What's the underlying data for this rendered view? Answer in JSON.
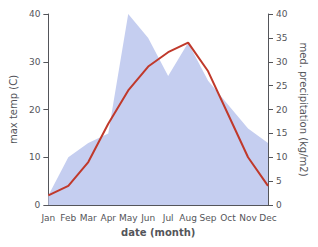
{
  "chart_data": {
    "type": "line",
    "xlabel": "date (month)",
    "ylabel": "max temp (C)",
    "y2label": "med. precipitation (kg/m2)",
    "categories": [
      "Jan",
      "Feb",
      "Mar",
      "Apr",
      "May",
      "Jun",
      "Jul",
      "Aug",
      "Sep",
      "Oct",
      "Nov",
      "Dec"
    ],
    "series": [
      {
        "type": "area",
        "color": "#c5cef0",
        "axis": "y2",
        "values": [
          2,
          10,
          13,
          15,
          40,
          35,
          27,
          34,
          26,
          21,
          16,
          13
        ]
      },
      {
        "type": "line",
        "color": "#c0392b",
        "values": [
          2,
          4,
          9,
          17,
          24,
          29,
          32,
          34,
          28,
          19,
          10,
          4
        ]
      }
    ],
    "ylim": [
      0,
      40
    ],
    "yticks": [
      0,
      10,
      20,
      30,
      40
    ],
    "y2lim": [
      0,
      40
    ],
    "y2ticks": [
      0,
      5,
      10,
      15,
      20,
      25,
      30,
      35,
      40
    ],
    "grid": false
  }
}
